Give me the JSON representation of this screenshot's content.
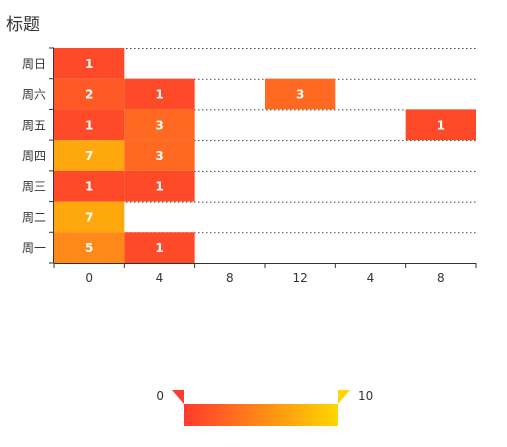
{
  "title": "标题",
  "chart_data": {
    "type": "heatmap",
    "title": "标题",
    "x_categories": [
      "0",
      "4",
      "8",
      "12",
      "4",
      "8"
    ],
    "y_categories": [
      "周一",
      "周二",
      "周三",
      "周四",
      "周五",
      "周六",
      "周日"
    ],
    "cells": [
      {
        "x": 0,
        "y": 6,
        "value": 1
      },
      {
        "x": 0,
        "y": 5,
        "value": 2
      },
      {
        "x": 1,
        "y": 5,
        "value": 1
      },
      {
        "x": 3,
        "y": 5,
        "value": 3
      },
      {
        "x": 0,
        "y": 4,
        "value": 1
      },
      {
        "x": 1,
        "y": 4,
        "value": 3
      },
      {
        "x": 5,
        "y": 4,
        "value": 1
      },
      {
        "x": 0,
        "y": 3,
        "value": 7
      },
      {
        "x": 1,
        "y": 3,
        "value": 3
      },
      {
        "x": 0,
        "y": 2,
        "value": 1
      },
      {
        "x": 1,
        "y": 2,
        "value": 1
      },
      {
        "x": 0,
        "y": 1,
        "value": 7
      },
      {
        "x": 0,
        "y": 0,
        "value": 5
      },
      {
        "x": 1,
        "y": 0,
        "value": 1
      }
    ],
    "visual_map": {
      "min": 0,
      "max": 10,
      "min_label": "0",
      "max_label": "10",
      "colors": [
        "#ff3a2f",
        "#ffd700"
      ]
    },
    "grid_line_style": "dotted"
  }
}
